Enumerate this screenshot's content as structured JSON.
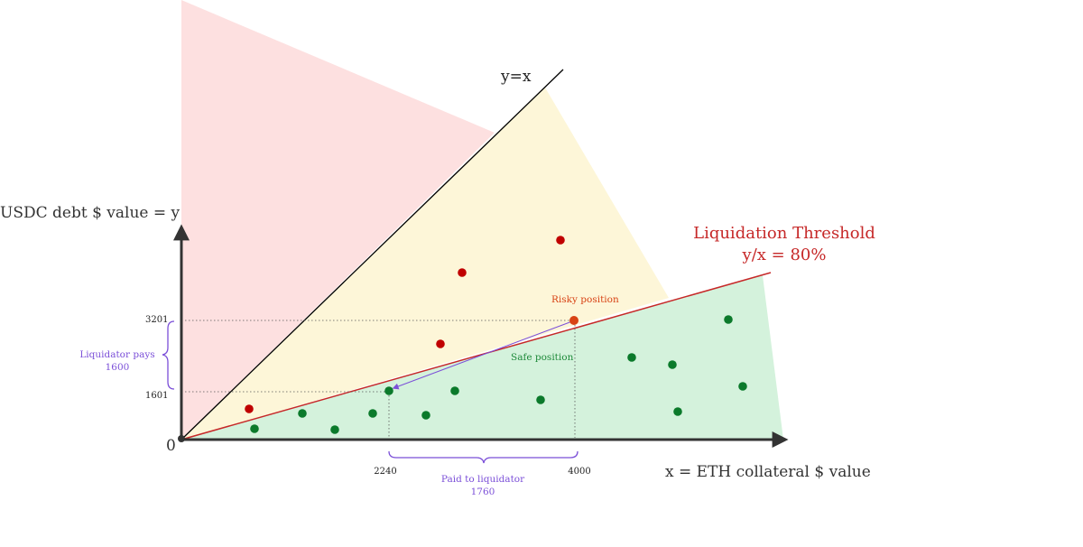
{
  "colors": {
    "unsafe_region": "#fde0e0",
    "risky_region": "#fdf6d8",
    "safe_region": "#d4f2dc",
    "threshold_line": "#c62828",
    "identity_line": "#000000",
    "axis": "#333333",
    "safe_point": "#0b7a2b",
    "risky_point": "#c00000",
    "highlight_point": "#d84315",
    "annotation_purple": "#7b4fd8",
    "safe_label": "#1e8a3a",
    "risky_label": "#d84315",
    "guide": "#555555"
  },
  "axes": {
    "origin_label": "0",
    "y_label": "USDC debt $ value = y",
    "x_label": "x = ETH collateral $ value"
  },
  "lines": {
    "identity_label": "y=x",
    "threshold_title": "Liquidation Threshold",
    "threshold_formula": "y/x = 80%"
  },
  "ticks": {
    "y_high": "3201",
    "y_low": "1601",
    "x_low": "2240",
    "x_high": "4000"
  },
  "annotations": {
    "risky_position": "Risky position",
    "safe_position": "Safe position",
    "liquidator_pays_label": "Liquidator pays",
    "liquidator_pays_value": "1600",
    "paid_to_liquidator_label": "Paid to liquidator",
    "paid_to_liquidator_value": "1760"
  }
}
